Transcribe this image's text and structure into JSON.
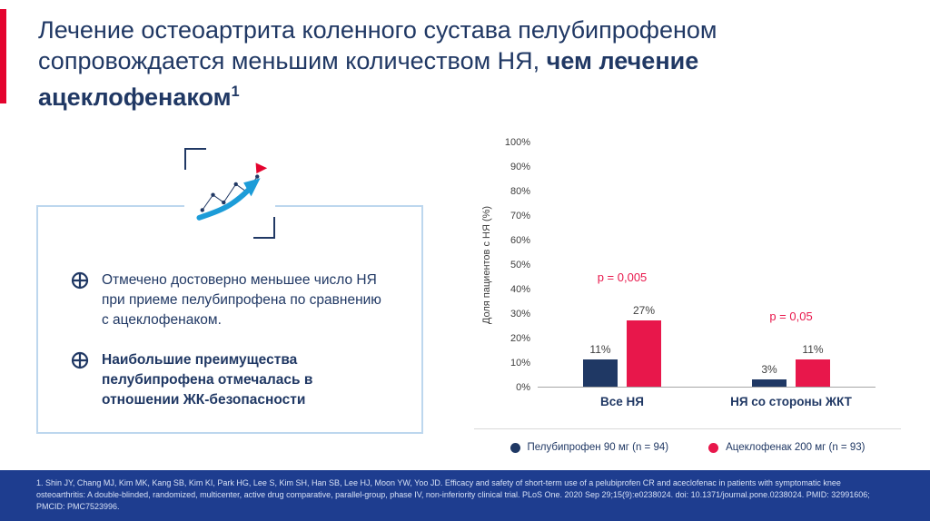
{
  "title": {
    "line1": "Лечение остеоартрита коленного сустава пелубипрофеном",
    "line2_regular": "сопровождается меньшим количеством НЯ, ",
    "line2_bold": "чем лечение",
    "line3_bold": "ацеклофенаком",
    "superscript": "1"
  },
  "info_box": {
    "bullet1": "Отмечено достоверно меньшее число НЯ при приеме пелубипрофена по сравнению с ацеклофенаком.",
    "bullet2": "Наибольшие преимущества пелубипрофена отмечалась в отношении ЖК-безопасности"
  },
  "chart_data": {
    "type": "bar",
    "categories": [
      "Все НЯ",
      "НЯ со стороны ЖКТ"
    ],
    "series": [
      {
        "name": "Пелубипрофен 90 мг (n = 94)",
        "color": "#1F3864",
        "values": [
          11,
          3
        ]
      },
      {
        "name": "Ацеклофенак 200 мг (n = 93)",
        "color": "#E8174B",
        "values": [
          27,
          11
        ]
      }
    ],
    "value_label_suffix": "%",
    "annotations": [
      "p = 0,005",
      "p = 0,05"
    ],
    "ylabel": "Доля пациентов с НЯ (%)",
    "ylim": [
      0,
      100
    ],
    "yticks": [
      "0%",
      "10%",
      "20%",
      "30%",
      "40%",
      "50%",
      "60%",
      "70%",
      "80%",
      "90%",
      "100%"
    ],
    "grid": false,
    "legend_position": "bottom"
  },
  "footer": {
    "reference": "1. Shin JY, Chang MJ, Kim MK, Kang SB, Kim KI, Park HG, Lee S, Kim SH, Han SB, Lee HJ, Moon YW, Yoo JD. Efficacy and safety of short-term use of a pelubiprofen CR and aceclofenac in patients with symptomatic knee osteoarthritis: A double-blinded, randomized, multicenter, active drug comparative, parallel-group, phase IV, non-inferiority clinical trial. PLoS One. 2020 Sep 29;15(9):e0238024. doi: 10.1371/journal.pone.0238024. PMID: 32991606; PMCID: PMC7523996."
  },
  "colors": {
    "navy": "#203864",
    "red_accent": "#E4032E",
    "bar_navy": "#1F3864",
    "bar_red": "#E8174B",
    "box_border": "#BDD7EE",
    "footer_bg": "#1E3D8F"
  }
}
